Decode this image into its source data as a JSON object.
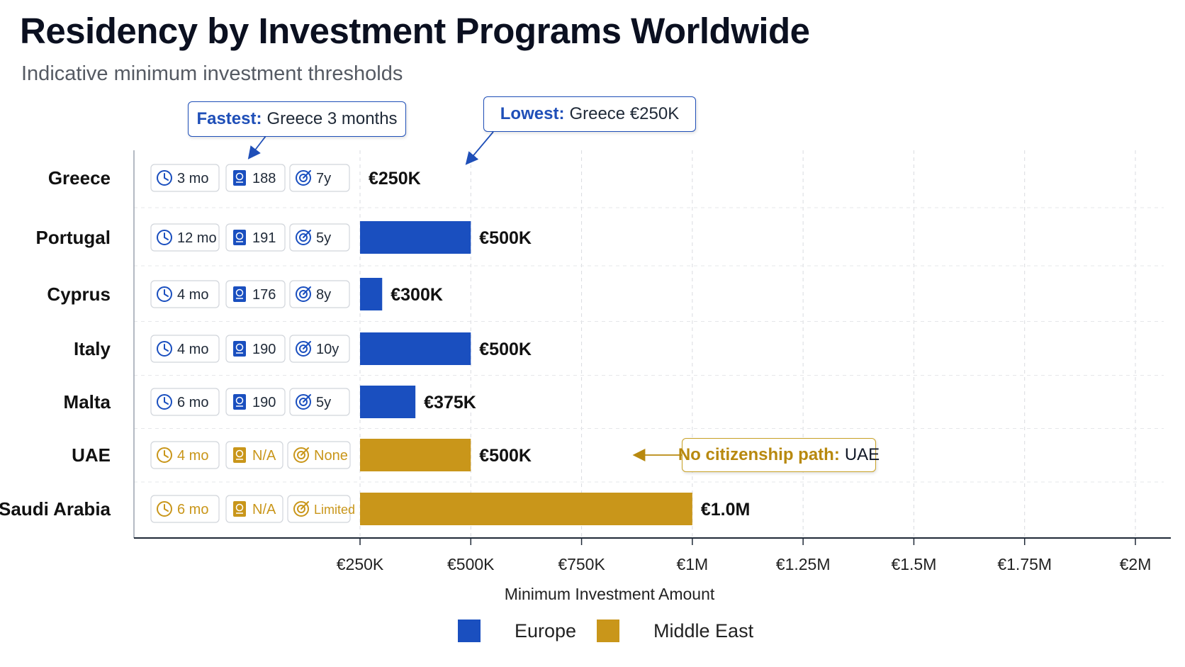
{
  "title": "Residency by Investment Programs Worldwide",
  "subtitle": "Indicative minimum investment thresholds",
  "colors": {
    "europe": "#1a4fbf",
    "middle_east": "#c9961a",
    "europe_icon": "#1a4fbf",
    "middle_east_icon": "#c9961a"
  },
  "icons": {
    "time": "clock-icon",
    "passport": "passport-icon",
    "citizenship": "target-icon"
  },
  "callouts": {
    "fastest": {
      "label": "Fastest:",
      "value": "Greece 3 months"
    },
    "lowest": {
      "label": "Lowest:",
      "value": "Greece €250K"
    },
    "no_citizenship": {
      "label": "No citizenship path:",
      "value": "UAE"
    }
  },
  "chart_data": {
    "type": "bar",
    "orientation": "horizontal",
    "categories": [
      "Greece",
      "Portugal",
      "Cyprus",
      "Italy",
      "Malta",
      "UAE",
      "Saudi Arabia"
    ],
    "values": [
      250000,
      500000,
      300000,
      500000,
      375000,
      500000,
      1000000
    ],
    "value_labels": [
      "€250K",
      "€500K",
      "€300K",
      "€500K",
      "€375K",
      "€500K",
      "€1.0M"
    ],
    "region": [
      "Europe",
      "Europe",
      "Europe",
      "Europe",
      "Europe",
      "Middle East",
      "Middle East"
    ],
    "stats": [
      {
        "time": "3 mo",
        "passport": "188",
        "citizenship": "7y"
      },
      {
        "time": "12 mo",
        "passport": "191",
        "citizenship": "5y"
      },
      {
        "time": "4 mo",
        "passport": "176",
        "citizenship": "8y"
      },
      {
        "time": "4 mo",
        "passport": "190",
        "citizenship": "10y"
      },
      {
        "time": "6 mo",
        "passport": "190",
        "citizenship": "5y"
      },
      {
        "time": "4 mo",
        "passport": "N/A",
        "citizenship": "None"
      },
      {
        "time": "6 mo",
        "passport": "N/A",
        "citizenship": "Limited"
      }
    ],
    "x_ticks": [
      250000,
      500000,
      750000,
      1000000,
      1250000,
      1500000,
      1750000,
      2000000
    ],
    "x_tick_labels": [
      "€250K",
      "€500K",
      "€750K",
      "€1M",
      "€1.25M",
      "€1.5M",
      "€1.75M",
      "€2M"
    ],
    "xlabel": "Minimum Investment Amount",
    "xlim": [
      250000,
      2000000
    ],
    "grid": true,
    "legend": {
      "position": "bottom-center",
      "entries": [
        "Europe",
        "Middle East"
      ]
    }
  }
}
